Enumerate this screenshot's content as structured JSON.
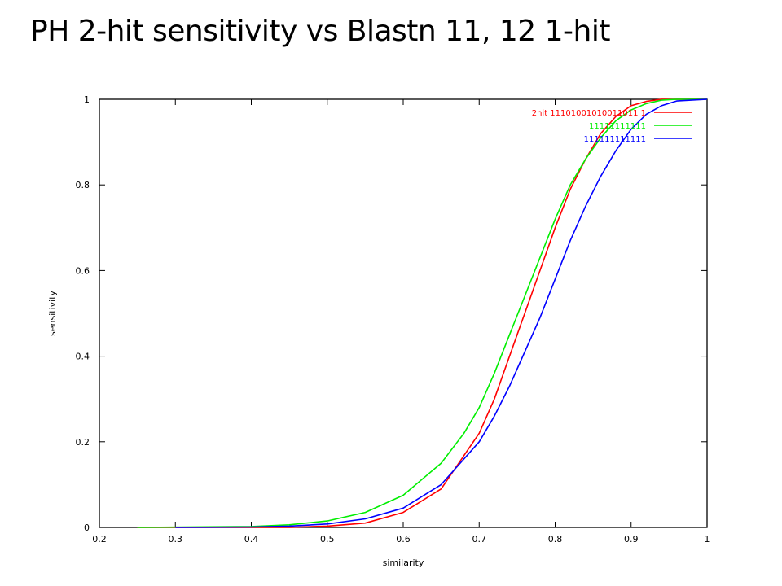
{
  "slide": {
    "title": "PH 2-hit sensitivity vs Blastn 11, 12 1-hit"
  },
  "chart_data": {
    "type": "line",
    "title": "",
    "xlabel": "similarity",
    "ylabel": "sensitivity",
    "xlim": [
      0.2,
      1.0
    ],
    "ylim": [
      0,
      1
    ],
    "xticks": [
      "0.2",
      "0.3",
      "0.4",
      "0.5",
      "0.6",
      "0.7",
      "0.8",
      "0.9",
      "1"
    ],
    "yticks": [
      "0",
      "0.2",
      "0.4",
      "0.6",
      "0.8",
      "1"
    ],
    "grid": false,
    "legend_position": "top-right",
    "series": [
      {
        "name": "2hit 11101001010011011 1",
        "color": "#ff0000",
        "x": [
          0.25,
          0.45,
          0.5,
          0.55,
          0.6,
          0.65,
          0.7,
          0.72,
          0.74,
          0.76,
          0.78,
          0.8,
          0.82,
          0.84,
          0.86,
          0.88,
          0.9,
          0.92,
          0.94,
          1.0
        ],
        "y": [
          0.0,
          0.0,
          0.003,
          0.01,
          0.035,
          0.09,
          0.22,
          0.3,
          0.4,
          0.5,
          0.6,
          0.7,
          0.79,
          0.86,
          0.92,
          0.96,
          0.985,
          0.995,
          1.0,
          1.0
        ]
      },
      {
        "name": "11111111111",
        "color": "#00ee00",
        "x": [
          0.25,
          0.4,
          0.45,
          0.5,
          0.55,
          0.6,
          0.65,
          0.68,
          0.7,
          0.72,
          0.74,
          0.76,
          0.78,
          0.8,
          0.82,
          0.84,
          0.86,
          0.88,
          0.9,
          0.92,
          0.94,
          0.96,
          1.0
        ],
        "y": [
          0.0,
          0.002,
          0.006,
          0.015,
          0.035,
          0.075,
          0.15,
          0.22,
          0.28,
          0.36,
          0.45,
          0.54,
          0.63,
          0.72,
          0.8,
          0.86,
          0.91,
          0.95,
          0.975,
          0.99,
          0.998,
          1.0,
          1.0
        ]
      },
      {
        "name": "111111111111",
        "color": "#0000ff",
        "x": [
          0.3,
          0.4,
          0.45,
          0.5,
          0.55,
          0.6,
          0.65,
          0.7,
          0.72,
          0.74,
          0.76,
          0.78,
          0.8,
          0.82,
          0.84,
          0.86,
          0.88,
          0.9,
          0.92,
          0.94,
          0.96,
          1.0
        ],
        "y": [
          0.0,
          0.001,
          0.003,
          0.008,
          0.02,
          0.045,
          0.1,
          0.2,
          0.26,
          0.33,
          0.41,
          0.49,
          0.58,
          0.67,
          0.75,
          0.82,
          0.88,
          0.93,
          0.965,
          0.985,
          0.996,
          1.0
        ]
      }
    ]
  }
}
